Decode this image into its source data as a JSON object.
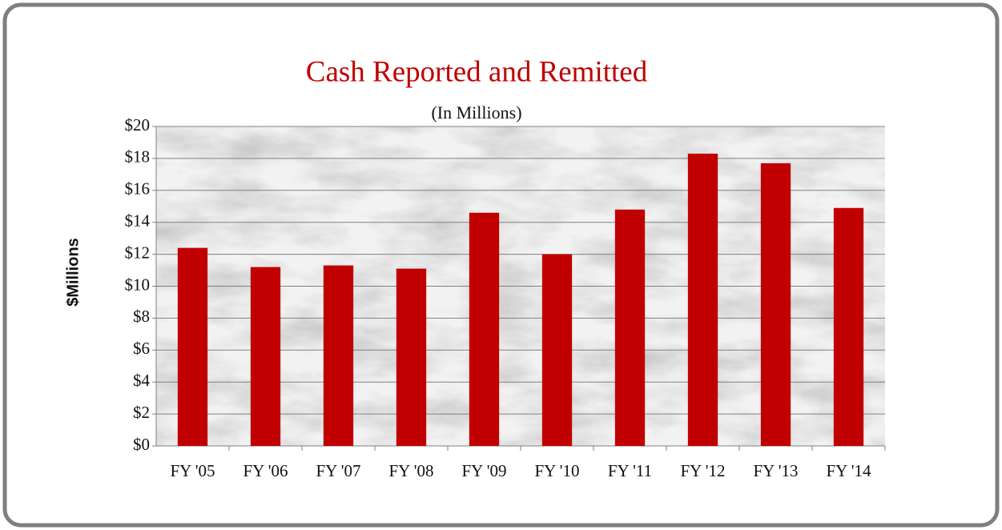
{
  "chart_data": {
    "type": "bar",
    "title": "Cash Reported and Remitted",
    "subtitle": "(In Millions)",
    "y_label": "$Millions",
    "categories": [
      "FY '05",
      "FY '06",
      "FY '07",
      "FY '08",
      "FY '09",
      "FY '10",
      "FY '11",
      "FY '12",
      "FY '13",
      "FY '14"
    ],
    "values": [
      12.4,
      11.2,
      11.3,
      11.1,
      14.6,
      12.0,
      14.8,
      18.3,
      17.7,
      14.9
    ],
    "color": "#c00000",
    "ylim": [
      0,
      20
    ],
    "yticks": [
      {
        "value": 0,
        "label": "$0"
      },
      {
        "value": 2,
        "label": "$2"
      },
      {
        "value": 4,
        "label": "$4"
      },
      {
        "value": 6,
        "label": "$6"
      },
      {
        "value": 8,
        "label": "$8"
      },
      {
        "value": 10,
        "label": "$10"
      },
      {
        "value": 12,
        "label": "$12"
      },
      {
        "value": 14,
        "label": "$14"
      },
      {
        "value": 16,
        "label": "$16"
      },
      {
        "value": 18,
        "label": "$18"
      },
      {
        "value": 20,
        "label": "$20"
      }
    ],
    "grid": true
  }
}
